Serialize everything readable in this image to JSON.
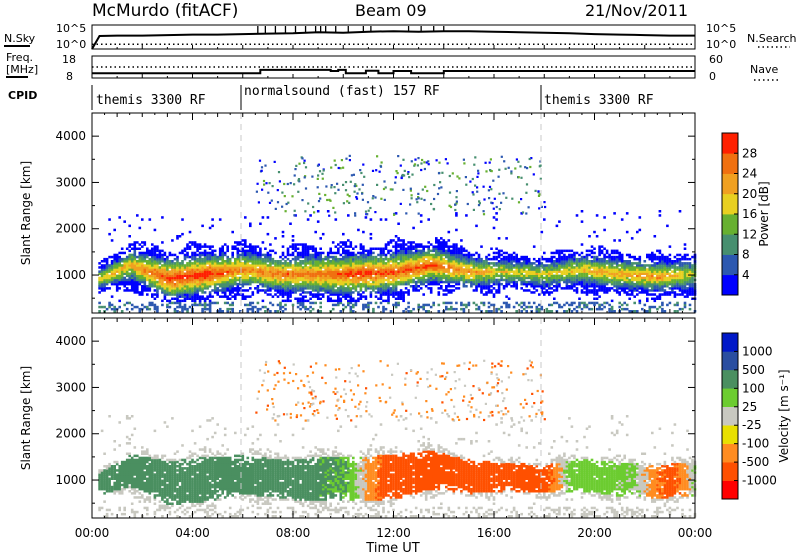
{
  "header": {
    "station": "McMurdo (fitACF)",
    "beam": "Beam 09",
    "date": "21/Nov/2011"
  },
  "noise_panel": {
    "left_label": "N.Sky",
    "right_label": "N.Search",
    "left_ticks": [
      "10^5",
      "10^0"
    ],
    "right_ticks": [
      "10^5",
      "10^0"
    ]
  },
  "freq_panel": {
    "left_label_1": "Freq.",
    "left_label_2": "[MHz]",
    "right_label": "Nave",
    "left_ticks": [
      "18",
      "8"
    ],
    "right_ticks": [
      "60",
      "0"
    ]
  },
  "cpid": {
    "label": "CPID",
    "segments": [
      {
        "text": "themis 3300 RF",
        "start_hour": 0
      },
      {
        "text": "normalsound (fast) 157 RF",
        "start_hour": 6
      },
      {
        "text": "themis 3300 RF",
        "start_hour": 18
      }
    ]
  },
  "colors": {
    "power": [
      "#0000ff",
      "#2c58b0",
      "#478f6f",
      "#67b030",
      "#e8d020",
      "#f0a020",
      "#f07010",
      "#ff2000"
    ],
    "velocity": [
      "#ff0000",
      "#ff5000",
      "#ff8c20",
      "#e8e000",
      "#c8c8c0",
      "#6ccc30",
      "#4a8f60",
      "#2a4ea0",
      "#0018c8"
    ]
  },
  "chart_data": [
    {
      "type": "line",
      "title": "N.Sky / N.Search",
      "x_range": [
        0,
        24
      ],
      "ylim_log10": [
        0,
        5
      ],
      "series": [
        {
          "style": "solid",
          "x": [
            0,
            0.3,
            1,
            2,
            3,
            4,
            5,
            6,
            7,
            8,
            9,
            10,
            11,
            12,
            13,
            14,
            15,
            16,
            17,
            18,
            19,
            20,
            21,
            22,
            23,
            24
          ],
          "y_log10": [
            0,
            2.7,
            2.8,
            2.8,
            2.9,
            3.0,
            3.0,
            3.1,
            3.2,
            3.3,
            3.5,
            3.4,
            3.6,
            3.7,
            3.6,
            3.7,
            3.7,
            3.6,
            3.5,
            3.4,
            3.3,
            3.1,
            3.0,
            2.9,
            2.8,
            2.8
          ]
        },
        {
          "style": "dotted",
          "x": [
            0,
            24
          ],
          "y_log10": [
            1.0,
            1.0
          ]
        }
      ]
    },
    {
      "type": "line",
      "title": "Freq. / Nave",
      "x_range": [
        0,
        24
      ],
      "ylim": [
        8,
        18
      ],
      "series": [
        {
          "style": "solid",
          "x": [
            0,
            6.7,
            6.7,
            9.5,
            9.5,
            9.8,
            9.8,
            10.1,
            10.1,
            10.9,
            10.9,
            11.4,
            11.4,
            12.0,
            12.0,
            12.7,
            12.7,
            14.0,
            14.0,
            24
          ],
          "y": [
            10.2,
            10.2,
            11.7,
            11.7,
            11.2,
            11.2,
            11.7,
            11.7,
            10.2,
            10.2,
            11.3,
            11.3,
            10.2,
            10.2,
            11.2,
            11.2,
            10.2,
            10.2,
            11.2,
            11.2
          ]
        },
        {
          "style": "dotted",
          "x": [
            0,
            24
          ],
          "y": [
            13.0,
            13.0
          ]
        }
      ]
    },
    {
      "type": "heatmap",
      "title": "Power",
      "xlabel": "",
      "ylabel": "Slant Range [km]",
      "x_range": [
        0,
        24
      ],
      "ylim": [
        180,
        4500
      ],
      "y_ticks": [
        1000,
        2000,
        3000,
        4000
      ],
      "colorbar": {
        "label": "Power [dB]",
        "ticks": [
          4,
          8,
          12,
          16,
          20,
          24,
          28
        ],
        "range": [
          0,
          32
        ]
      },
      "profile": {
        "time": [
          0.3,
          1.5,
          3,
          4.5,
          6,
          7.5,
          9,
          10.5,
          12,
          13.5,
          15,
          16.5,
          18,
          19.5,
          21,
          22.5,
          24
        ],
        "center_km": [
          900,
          1200,
          900,
          1000,
          1100,
          1000,
          1000,
          1000,
          1050,
          1200,
          1050,
          1050,
          1000,
          1100,
          1000,
          950,
          1000
        ],
        "halfwidth_km": [
          200,
          300,
          400,
          400,
          350,
          350,
          400,
          400,
          400,
          350,
          300,
          250,
          250,
          300,
          300,
          300,
          300
        ],
        "peak_db": [
          20,
          22,
          30,
          31,
          24,
          26,
          25,
          30,
          28,
          28,
          24,
          18,
          18,
          20,
          22,
          24,
          16
        ]
      },
      "upper_scatter": {
        "range_km": [
          2300,
          3600
        ],
        "time": [
          6.5,
          18
        ]
      }
    },
    {
      "type": "heatmap",
      "title": "Velocity",
      "xlabel": "Time UT",
      "ylabel": "Slant Range [km]",
      "x_range": [
        0,
        24
      ],
      "x_ticks": [
        "00:00",
        "04:00",
        "08:00",
        "12:00",
        "16:00",
        "20:00",
        "00:00"
      ],
      "ylim": [
        180,
        4500
      ],
      "y_ticks": [
        1000,
        2000,
        3000,
        4000
      ],
      "colorbar": {
        "label": "Velocity [m s⁻¹]",
        "ticks": [
          "1000",
          "500",
          "100",
          "25",
          "-25",
          "-100",
          "-500",
          "-1000"
        ]
      },
      "profile": {
        "time": [
          0.3,
          2,
          4,
          6,
          8,
          10,
          11,
          12,
          14,
          16,
          18,
          19,
          20,
          21.5,
          23,
          24
        ],
        "velocity_ms": [
          200,
          300,
          250,
          200,
          150,
          100,
          -50,
          -200,
          -250,
          -200,
          -150,
          60,
          60,
          40,
          -150,
          30
        ]
      }
    }
  ]
}
